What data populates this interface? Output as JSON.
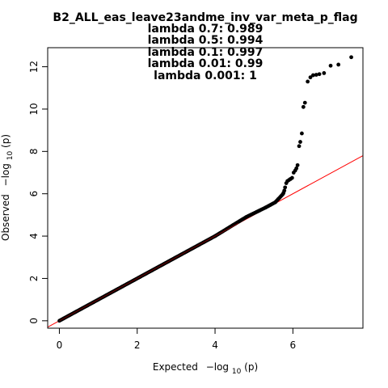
{
  "chart_data": {
    "type": "scatter",
    "title_lines": [
      "B2_ALL_eas_leave23andme_inv_var_meta_p_flag",
      "lambda 0.7: 0.989",
      "lambda 0.5: 0.994",
      "lambda 0.1: 0.997",
      "lambda 0.01: 0.99",
      "lambda 0.001: 1"
    ],
    "xlabel": {
      "prefix": "Expected",
      "minus_log": "−log",
      "sub": "10",
      "arg": "(p)"
    },
    "ylabel": {
      "prefix": "Observed",
      "minus_log": "−log",
      "sub": "10",
      "arg": "(p)"
    },
    "xlim": [
      -0.3,
      7.8
    ],
    "ylim": [
      -0.35,
      12.9
    ],
    "x_ticks": [
      0,
      2,
      4,
      6
    ],
    "y_ticks": [
      0,
      2,
      4,
      6,
      8,
      10,
      12
    ],
    "x_tick_labels": [
      "0",
      "2",
      "4",
      "6"
    ],
    "y_tick_labels": [
      "0",
      "2",
      "4",
      "6",
      "8",
      "10",
      "12"
    ],
    "colors": {
      "points": "#000000",
      "reference_line": "#ff0000"
    },
    "reference_line": {
      "slope": 1,
      "intercept": 0
    },
    "bulk_segments": [
      {
        "x": [
          0.0,
          4.0
        ],
        "y": [
          0.0,
          4.0
        ]
      },
      {
        "x": [
          4.0,
          4.8
        ],
        "y": [
          4.0,
          4.9
        ]
      },
      {
        "x": [
          4.8,
          5.3
        ],
        "y": [
          4.9,
          5.35
        ]
      },
      {
        "x": [
          5.3,
          5.55
        ],
        "y": [
          5.35,
          5.6
        ]
      },
      {
        "x": [
          5.55,
          5.75
        ],
        "y": [
          5.6,
          6.0
        ]
      }
    ],
    "tail_points": [
      {
        "x": 5.76,
        "y": 6.05
      },
      {
        "x": 5.78,
        "y": 6.15
      },
      {
        "x": 5.8,
        "y": 6.3
      },
      {
        "x": 5.83,
        "y": 6.5
      },
      {
        "x": 5.86,
        "y": 6.6
      },
      {
        "x": 5.9,
        "y": 6.65
      },
      {
        "x": 5.94,
        "y": 6.7
      },
      {
        "x": 5.98,
        "y": 6.75
      },
      {
        "x": 6.02,
        "y": 7.0
      },
      {
        "x": 6.06,
        "y": 7.1
      },
      {
        "x": 6.09,
        "y": 7.2
      },
      {
        "x": 6.12,
        "y": 7.35
      },
      {
        "x": 6.16,
        "y": 8.25
      },
      {
        "x": 6.19,
        "y": 8.45
      },
      {
        "x": 6.23,
        "y": 8.85
      },
      {
        "x": 6.27,
        "y": 10.1
      },
      {
        "x": 6.31,
        "y": 10.3
      },
      {
        "x": 6.38,
        "y": 11.3
      },
      {
        "x": 6.45,
        "y": 11.5
      },
      {
        "x": 6.52,
        "y": 11.6
      },
      {
        "x": 6.6,
        "y": 11.62
      },
      {
        "x": 6.68,
        "y": 11.65
      },
      {
        "x": 6.8,
        "y": 11.7
      },
      {
        "x": 6.97,
        "y": 12.05
      },
      {
        "x": 7.17,
        "y": 12.1
      },
      {
        "x": 7.5,
        "y": 12.45
      }
    ]
  }
}
